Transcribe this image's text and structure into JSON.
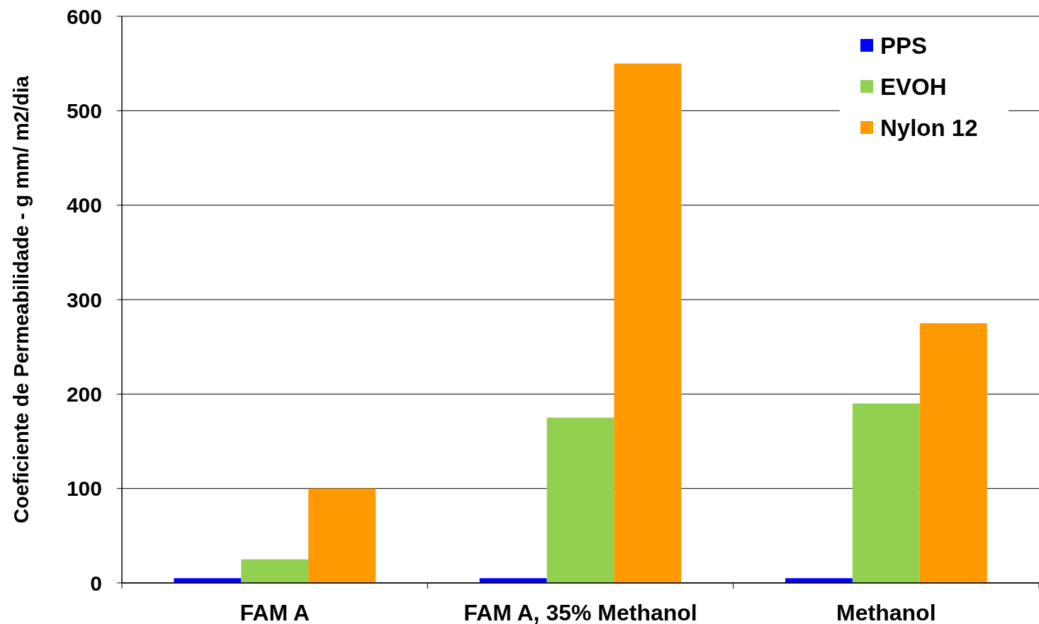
{
  "chart_data": {
    "type": "bar",
    "ylabel": "Coeficiente de Permeabilidade -  g mm/ m2/dia",
    "categories": [
      "FAM A",
      "FAM A, 35% Methanol",
      "Methanol"
    ],
    "series": [
      {
        "name": "PPS",
        "color": "#0000ff",
        "values": [
          5,
          5,
          5
        ]
      },
      {
        "name": "EVOH",
        "color": "#92d050",
        "values": [
          25,
          175,
          190
        ]
      },
      {
        "name": "Nylon 12",
        "color": "#ff9900",
        "values": [
          100,
          550,
          275
        ]
      }
    ],
    "ylim": [
      0,
      600
    ],
    "yticks": [
      0,
      100,
      200,
      300,
      400,
      500,
      600
    ],
    "grid": "y",
    "legend": "top right"
  }
}
